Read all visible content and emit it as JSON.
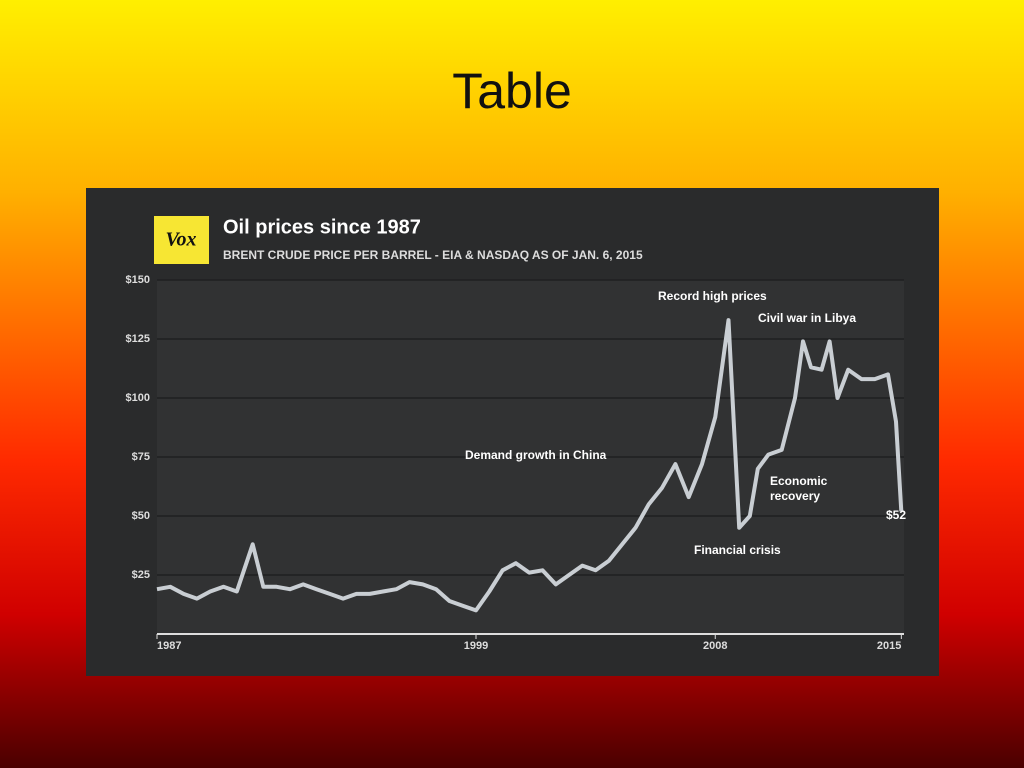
{
  "slide": {
    "title": "Table"
  },
  "chart_data": {
    "type": "line",
    "logo": "Vox",
    "title": "Oil prices since 1987",
    "subtitle": "BRENT CRUDE PRICE PER BARREL - EIA & NASDAQ AS OF JAN. 6, 2015",
    "x": [
      1987,
      1987.5,
      1988,
      1988.5,
      1989,
      1989.5,
      1990,
      1990.6,
      1991,
      1991.5,
      1992,
      1992.5,
      1993,
      1993.5,
      1994,
      1994.5,
      1995,
      1995.5,
      1996,
      1996.5,
      1997,
      1997.5,
      1998,
      1998.5,
      1999,
      1999.5,
      2000,
      2000.5,
      2001,
      2001.5,
      2002,
      2002.5,
      2003,
      2003.5,
      2004,
      2004.5,
      2005,
      2005.5,
      2006,
      2006.5,
      2007,
      2007.5,
      2008,
      2008.5,
      2008.9,
      2009.3,
      2009.6,
      2010,
      2010.5,
      2011,
      2011.3,
      2011.6,
      2012,
      2012.3,
      2012.6,
      2013,
      2013.5,
      2014,
      2014.5,
      2014.8,
      2015
    ],
    "values": [
      19,
      20,
      17,
      15,
      18,
      20,
      18,
      38,
      20,
      20,
      19,
      21,
      19,
      17,
      15,
      17,
      17,
      18,
      19,
      22,
      21,
      19,
      14,
      12,
      10,
      18,
      27,
      30,
      26,
      27,
      21,
      25,
      29,
      27,
      31,
      38,
      45,
      55,
      62,
      72,
      58,
      72,
      92,
      133,
      45,
      50,
      70,
      76,
      78,
      100,
      124,
      113,
      112,
      124,
      100,
      112,
      108,
      108,
      110,
      90,
      52
    ],
    "color": "#c9ced3",
    "xlim": [
      1987,
      2015.1
    ],
    "xticks": [
      1987,
      1999,
      2008,
      2015
    ],
    "ylim": [
      0,
      150
    ],
    "yticks": [
      {
        "value": 25,
        "label": "$25"
      },
      {
        "value": 50,
        "label": "$50"
      },
      {
        "value": 75,
        "label": "$75"
      },
      {
        "value": 100,
        "label": "$100"
      },
      {
        "value": 125,
        "label": "$125"
      },
      {
        "value": 150,
        "label": "$150"
      }
    ],
    "grid": true,
    "annotations": [
      "Record high prices",
      "Civil war in Libya",
      "Demand growth in China",
      "Economic recovery",
      "Financial crisis",
      "$52"
    ]
  }
}
